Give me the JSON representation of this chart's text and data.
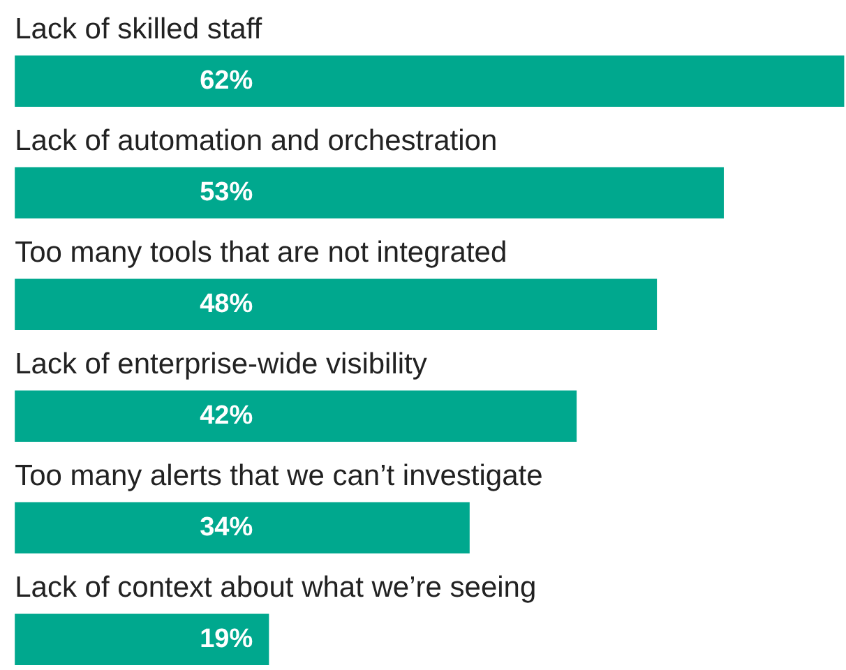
{
  "chart_data": {
    "type": "bar",
    "orientation": "horizontal",
    "categories": [
      "Lack of skilled staff",
      "Lack of automation and orchestration",
      "Too many tools that are not integrated",
      "Lack of enterprise-wide visibility",
      "Too many alerts that we can’t investigate",
      "Lack of context about what we’re seeing"
    ],
    "values": [
      62,
      53,
      48,
      42,
      34,
      19
    ],
    "value_labels": [
      "62%",
      "53%",
      "48%",
      "42%",
      "34%",
      "19%"
    ],
    "color": "#00a88e"
  }
}
